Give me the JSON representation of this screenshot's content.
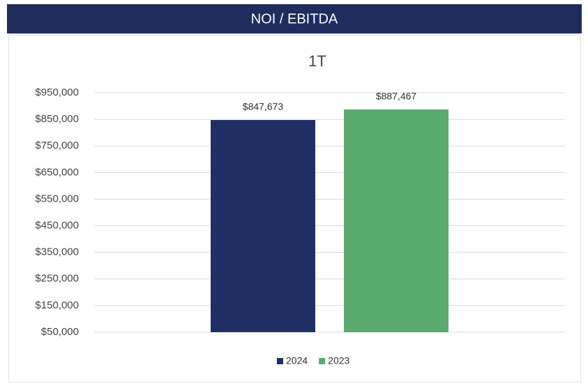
{
  "header": {
    "title": "NOI / EBITDA"
  },
  "chart_data": {
    "type": "bar",
    "title": "1T",
    "categories": [
      null
    ],
    "series": [
      {
        "name": "2024",
        "color": "#1f2f63",
        "values": [
          847673
        ],
        "value_labels": [
          "$847,673"
        ]
      },
      {
        "name": "2023",
        "color": "#5aa96e",
        "values": [
          887467
        ],
        "value_labels": [
          "$887,467"
        ]
      }
    ],
    "ylim": [
      50000,
      950000
    ],
    "yticks": [
      {
        "value": 50000,
        "label": "$50,000"
      },
      {
        "value": 150000,
        "label": "$150,000"
      },
      {
        "value": 250000,
        "label": "$250,000"
      },
      {
        "value": 350000,
        "label": "$350,000"
      },
      {
        "value": 450000,
        "label": "$450,000"
      },
      {
        "value": 550000,
        "label": "$550,000"
      },
      {
        "value": 650000,
        "label": "$650,000"
      },
      {
        "value": 750000,
        "label": "$750,000"
      },
      {
        "value": 850000,
        "label": "$850,000"
      },
      {
        "value": 950000,
        "label": "$950,000"
      }
    ],
    "grid": true,
    "legend": "bottom"
  }
}
